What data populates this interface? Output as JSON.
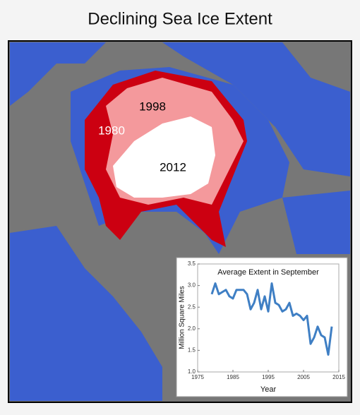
{
  "title": "Declining Sea Ice Extent",
  "map": {
    "labels": [
      "1980",
      "1998",
      "2012"
    ]
  },
  "chart_data": {
    "type": "line",
    "title": "Average Extent in September",
    "x_label": "Year",
    "y_label": "Million Square Miles",
    "x": [
      1979,
      1980,
      1981,
      1982,
      1983,
      1984,
      1985,
      1986,
      1987,
      1988,
      1989,
      1990,
      1991,
      1992,
      1993,
      1994,
      1995,
      1996,
      1997,
      1998,
      1999,
      2000,
      2001,
      2002,
      2003,
      2004,
      2005,
      2006,
      2007,
      2008,
      2009,
      2010,
      2011,
      2012,
      2013
    ],
    "values": [
      2.8,
      3.05,
      2.8,
      2.85,
      2.9,
      2.75,
      2.7,
      2.9,
      2.9,
      2.9,
      2.8,
      2.45,
      2.6,
      2.9,
      2.45,
      2.75,
      2.4,
      3.05,
      2.6,
      2.55,
      2.4,
      2.45,
      2.6,
      2.3,
      2.35,
      2.3,
      2.2,
      2.3,
      1.65,
      1.8,
      2.05,
      1.85,
      1.8,
      1.4,
      2.05
    ],
    "color": "#3f7fc4",
    "xlim": [
      1975,
      2015
    ],
    "xticks": [
      1975,
      1985,
      1995,
      2005,
      2015
    ],
    "ylim": [
      1.0,
      3.5
    ],
    "yticks": [
      {
        "value": 1.0,
        "label": "1.0"
      },
      {
        "value": 1.5,
        "label": "1.5"
      },
      {
        "value": 2.0,
        "label": "2.0"
      },
      {
        "value": 2.5,
        "label": "2.5"
      },
      {
        "value": 3.0,
        "label": "3.0"
      },
      {
        "value": 3.5,
        "label": "3.5"
      }
    ]
  }
}
